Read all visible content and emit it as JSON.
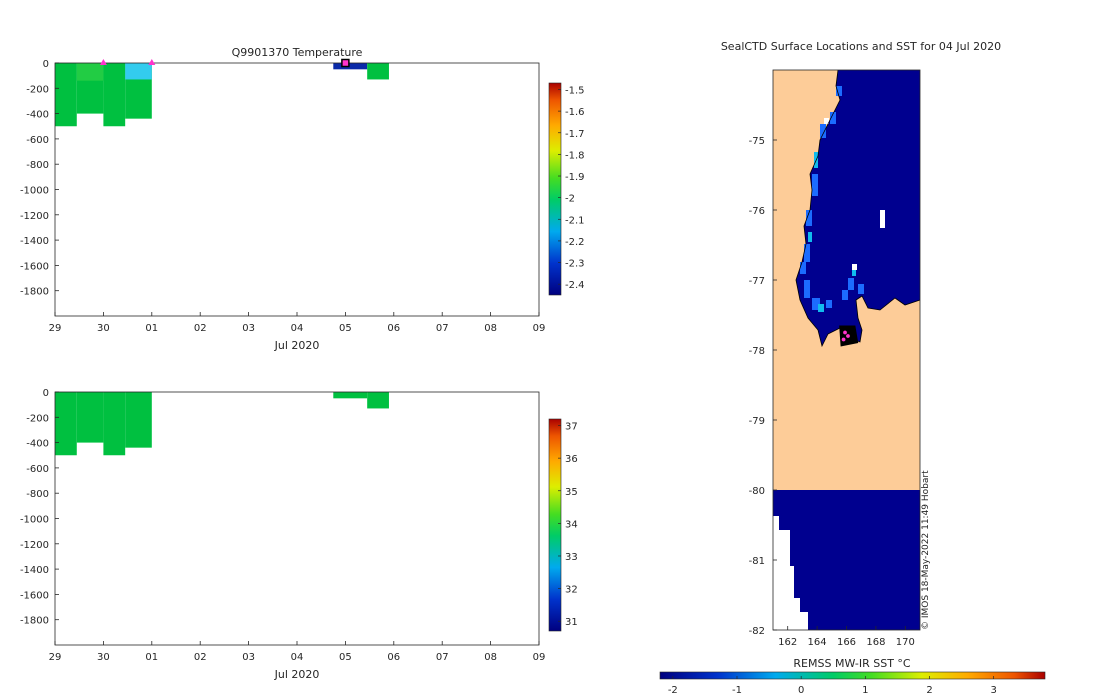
{
  "colors": {
    "land": "#fdcc98",
    "deep_sst": "#00008f",
    "green_fill": "#00c040",
    "deep_blue_fill": "#0a2aa8",
    "cyan_fill": "#33ccee",
    "marker": "#ff33cc"
  },
  "chart_data": [
    {
      "type": "heatmap",
      "title": "Q9901370  Temperature",
      "xlabel": "Jul 2020",
      "ylabel": "",
      "x_ticks": [
        "29",
        "30",
        "01",
        "02",
        "03",
        "04",
        "05",
        "06",
        "07",
        "08",
        "09"
      ],
      "y_ticks": [
        "0",
        "-200",
        "-400",
        "-600",
        "-800",
        "-1000",
        "-1200",
        "-1400",
        "-1600",
        "-1800"
      ],
      "xlim_days": [
        0,
        10
      ],
      "ylim": [
        -2000,
        0
      ],
      "colorbar": {
        "ticks": [
          "-1.5",
          "-1.6",
          "-1.7",
          "-1.8",
          "-1.9",
          "-2",
          "-2.1",
          "-2.2",
          "-2.3",
          "-2.4"
        ],
        "range": [
          -2.45,
          -1.47
        ]
      },
      "profiles": [
        {
          "x0": 0.0,
          "x1": 0.45,
          "y_bottom": -500,
          "value": -2.0
        },
        {
          "x0": 0.45,
          "x1": 1.0,
          "y_bottom": -400,
          "value": -2.0
        },
        {
          "x0": 1.0,
          "x1": 1.45,
          "y_bottom": -500,
          "value": -2.0
        },
        {
          "x0": 1.45,
          "x1": 2.0,
          "y_bottom": -440,
          "value": -2.0
        },
        {
          "x0": 5.75,
          "x1": 6.45,
          "y_bottom": -50,
          "value": -2.33
        },
        {
          "x0": 6.45,
          "x1": 6.9,
          "y_bottom": -130,
          "value": -2.0
        }
      ],
      "surface_markers_days": [
        1.0,
        2.0,
        6.0
      ]
    },
    {
      "type": "heatmap",
      "title": "",
      "xlabel": "Jul 2020",
      "ylabel": "",
      "x_ticks": [
        "29",
        "30",
        "01",
        "02",
        "03",
        "04",
        "05",
        "06",
        "07",
        "08",
        "09"
      ],
      "y_ticks": [
        "0",
        "-200",
        "-400",
        "-600",
        "-800",
        "-1000",
        "-1200",
        "-1400",
        "-1600",
        "-1800"
      ],
      "xlim_days": [
        0,
        10
      ],
      "ylim": [
        -2000,
        0
      ],
      "colorbar": {
        "ticks": [
          "37",
          "36",
          "35",
          "34",
          "33",
          "32",
          "31"
        ],
        "range": [
          30.7,
          37.2
        ]
      },
      "profiles": [
        {
          "x0": 0.0,
          "x1": 0.45,
          "y_bottom": -500,
          "value": 33.4
        },
        {
          "x0": 0.45,
          "x1": 1.0,
          "y_bottom": -400,
          "value": 33.4
        },
        {
          "x0": 1.0,
          "x1": 1.45,
          "y_bottom": -500,
          "value": 33.4
        },
        {
          "x0": 1.45,
          "x1": 2.0,
          "y_bottom": -440,
          "value": 33.4
        },
        {
          "x0": 5.75,
          "x1": 6.45,
          "y_bottom": -50,
          "value": 33.4
        },
        {
          "x0": 6.45,
          "x1": 6.9,
          "y_bottom": -130,
          "value": 33.4
        }
      ]
    },
    {
      "type": "heatmap",
      "title": "SealCTD Surface Locations and SST for 04 Jul 2020",
      "xlabel": "",
      "ylabel": "",
      "x_ticks": [
        "162",
        "164",
        "166",
        "168",
        "170"
      ],
      "y_ticks": [
        "-75",
        "-76",
        "-77",
        "-78",
        "-79",
        "-80",
        "-81",
        "-82"
      ],
      "lon_range": [
        161,
        171
      ],
      "lat_range": [
        -82,
        -74
      ],
      "colorbar": {
        "label": "REMSS MW-IR SST °C",
        "ticks": [
          "-2",
          "-1",
          "0",
          "1",
          "2",
          "3"
        ],
        "range": [
          -2.2,
          3.8
        ]
      },
      "station_markers": [
        {
          "lon": 165.9,
          "lat": -77.75
        },
        {
          "lon": 166.1,
          "lat": -77.8
        },
        {
          "lon": 165.8,
          "lat": -77.85
        }
      ],
      "credit": "© IMOS 18-May-2022 11:49 Hobart"
    }
  ]
}
